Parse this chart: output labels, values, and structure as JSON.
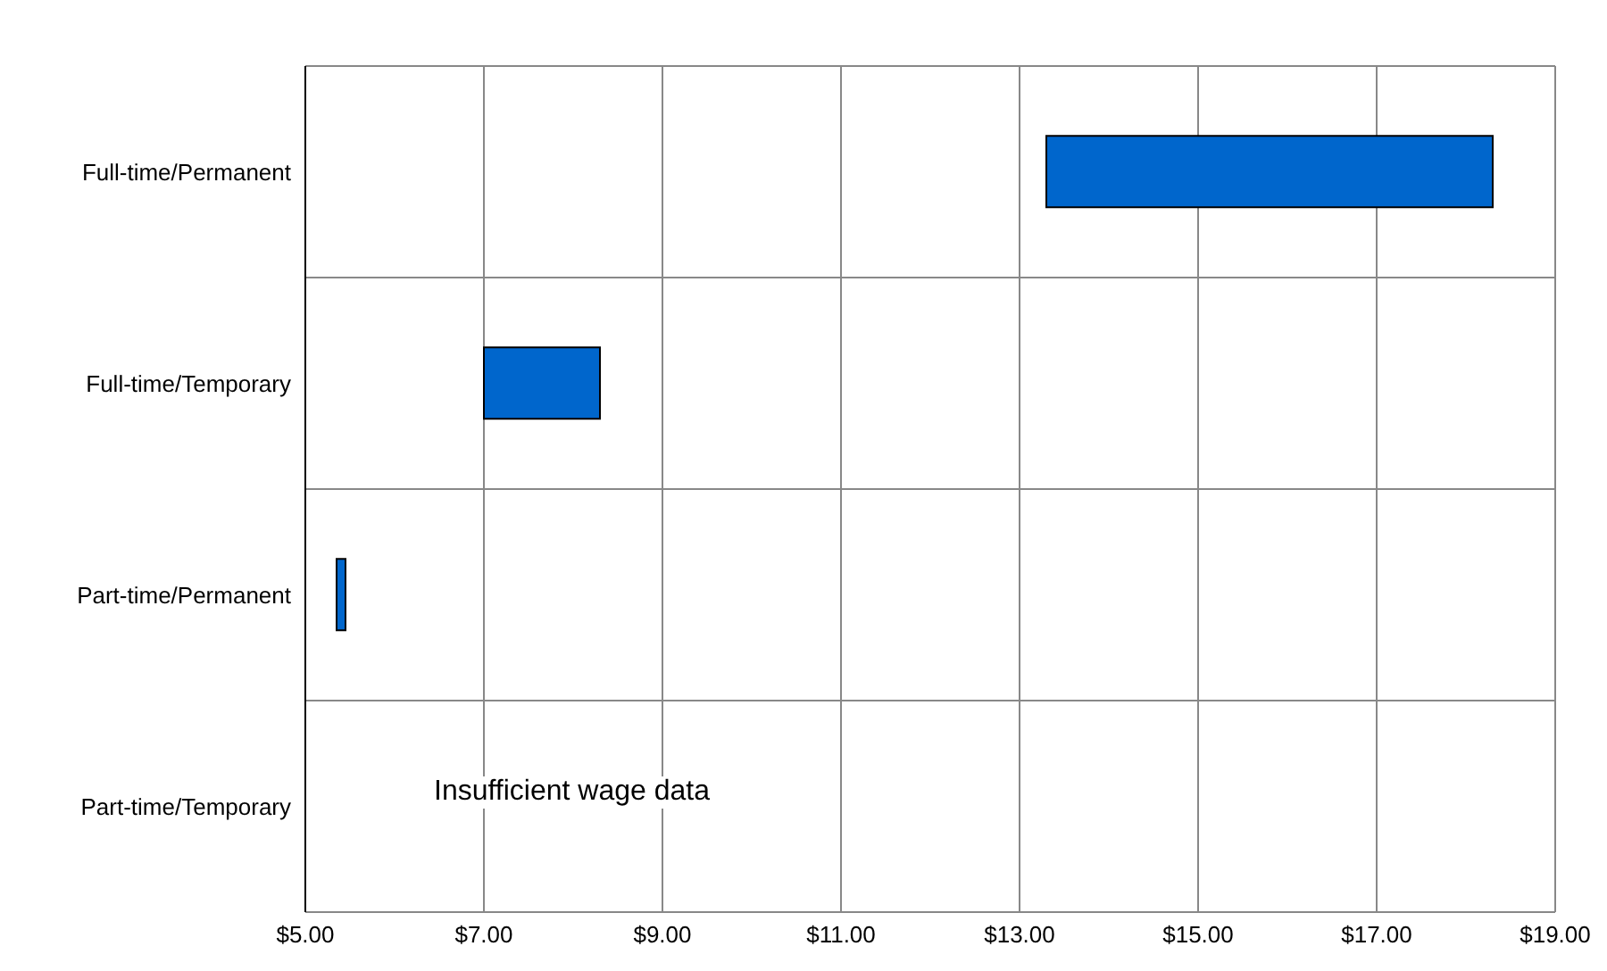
{
  "chart_data": {
    "type": "bar",
    "orientation": "horizontal",
    "categories": [
      "Full-time/Permanent",
      "Full-time/Temporary",
      "Part-time/Permanent",
      "Part-time/Temporary"
    ],
    "base": [
      13.3,
      7.0,
      5.35,
      null
    ],
    "values": [
      5.0,
      1.3,
      0.1,
      null
    ],
    "color": "#0066cc",
    "xlim": [
      5,
      19
    ],
    "xticks": [
      {
        "value": 5,
        "label": "$5.00"
      },
      {
        "value": 7,
        "label": "$7.00"
      },
      {
        "value": 9,
        "label": "$9.00"
      },
      {
        "value": 11,
        "label": "$11.00"
      },
      {
        "value": 13,
        "label": "$13.00"
      },
      {
        "value": 15,
        "label": "$15.00"
      },
      {
        "value": 17,
        "label": "$17.00"
      },
      {
        "value": 19,
        "label": "$19.00"
      }
    ],
    "annotations": [
      "Insufficient wage data"
    ],
    "grid": true
  }
}
